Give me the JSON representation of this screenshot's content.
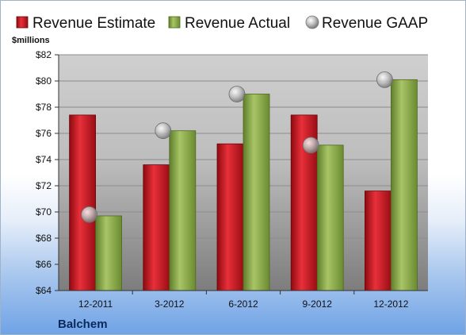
{
  "chart_data": {
    "type": "bar",
    "categories": [
      "12-2011",
      "3-2012",
      "6-2012",
      "9-2012",
      "12-2012"
    ],
    "series": [
      {
        "name": "Revenue Estimate",
        "kind": "bar",
        "color": "#c8141c",
        "values": [
          77.4,
          73.6,
          75.2,
          77.4,
          71.6
        ]
      },
      {
        "name": "Revenue Actual",
        "kind": "bar",
        "color": "#8fae4a",
        "values": [
          69.7,
          76.2,
          79.0,
          75.1,
          80.1
        ]
      },
      {
        "name": "Revenue GAAP",
        "kind": "marker",
        "color": "#b9b9b9",
        "values": [
          69.8,
          76.2,
          79.0,
          75.1,
          80.1
        ]
      }
    ],
    "ylabel": "$millions",
    "ylim": [
      64,
      82
    ],
    "yticks": [
      64,
      66,
      68,
      70,
      72,
      74,
      76,
      78,
      80,
      82
    ],
    "ytick_labels": [
      "$64",
      "$66",
      "$68",
      "$70",
      "$72",
      "$74",
      "$76",
      "$78",
      "$80",
      "$82"
    ],
    "grid": true,
    "legend_position": "top",
    "company": "Balchem"
  }
}
